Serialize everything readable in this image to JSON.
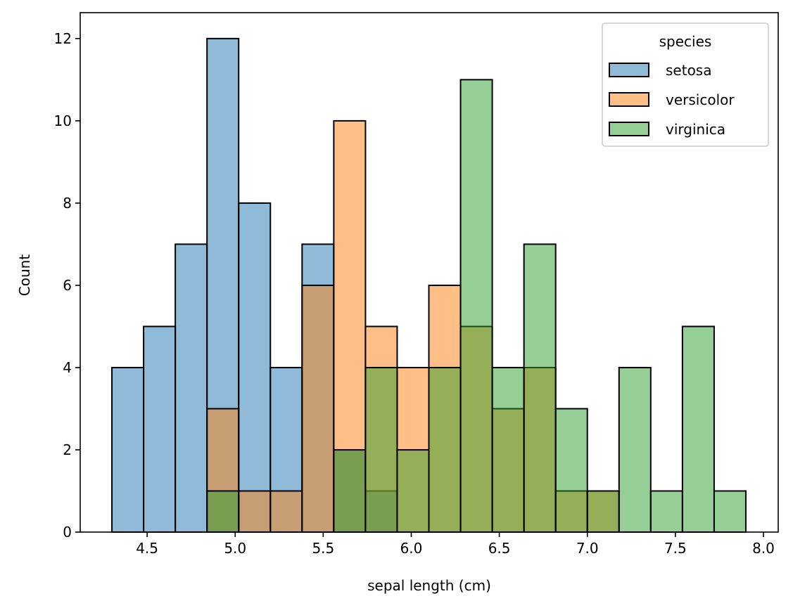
{
  "chart_data": {
    "type": "bar",
    "subtype": "overlapping-histogram",
    "title": "",
    "xlabel": "sepal length (cm)",
    "ylabel": "Count",
    "xlim": [
      4.12,
      8.084
    ],
    "ylim": [
      0,
      12.63
    ],
    "xticks": [
      4.5,
      5.0,
      5.5,
      6.0,
      6.5,
      7.0,
      7.5,
      8.0
    ],
    "xtick_labels": [
      "4.5",
      "5.0",
      "5.5",
      "6.0",
      "6.5",
      "7.0",
      "7.5",
      "8.0"
    ],
    "yticks": [
      0,
      2,
      4,
      6,
      8,
      10,
      12
    ],
    "ytick_labels": [
      "0",
      "2",
      "4",
      "6",
      "8",
      "10",
      "12"
    ],
    "grid": false,
    "bin_edges": [
      4.3,
      4.48,
      4.66,
      4.84,
      5.02,
      5.2,
      5.38,
      5.56,
      5.74,
      5.92,
      6.1,
      6.28,
      6.46,
      6.64,
      6.82,
      7.0,
      7.18,
      7.36,
      7.54,
      7.72,
      7.9
    ],
    "series": [
      {
        "name": "setosa",
        "color": "#1f77b4",
        "values": [
          4,
          5,
          7,
          12,
          8,
          4,
          7,
          2,
          1,
          0,
          0,
          0,
          0,
          0,
          0,
          0,
          0,
          0,
          0,
          0
        ]
      },
      {
        "name": "versicolor",
        "color": "#ff7f0e",
        "values": [
          0,
          0,
          0,
          3,
          1,
          1,
          6,
          10,
          5,
          4,
          6,
          5,
          3,
          4,
          1,
          1,
          0,
          0,
          0,
          0
        ]
      },
      {
        "name": "virginica",
        "color": "#2ca02c",
        "values": [
          0,
          0,
          0,
          1,
          0,
          0,
          0,
          2,
          4,
          2,
          4,
          11,
          4,
          7,
          3,
          1,
          4,
          1,
          5,
          1
        ]
      }
    ],
    "bar_alpha": 0.5,
    "legend": {
      "title": "species",
      "placement": "top-right",
      "entries": [
        "setosa",
        "versicolor",
        "virginica"
      ]
    }
  }
}
